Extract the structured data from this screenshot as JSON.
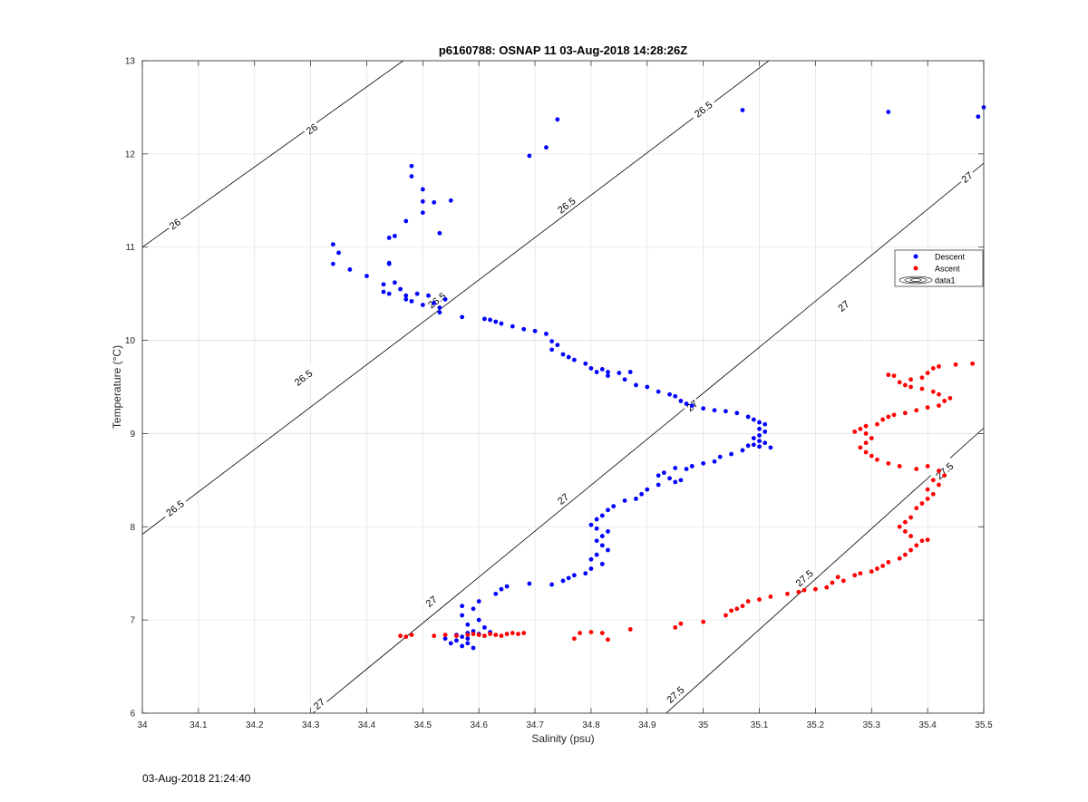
{
  "chart_data": {
    "type": "scatter",
    "title": "p6160788: OSNAP 11 03-Aug-2018 14:28:26Z",
    "xlabel": "Salinity (psu)",
    "ylabel": "Temperature (°C)",
    "xlim": [
      34,
      35.5
    ],
    "ylim": [
      6,
      13
    ],
    "xticks": [
      "34",
      "34.1",
      "34.2",
      "34.3",
      "34.4",
      "34.5",
      "34.6",
      "34.7",
      "34.8",
      "34.9",
      "35",
      "35.1",
      "35.2",
      "35.3",
      "35.4",
      "35.5"
    ],
    "yticks": [
      "6",
      "7",
      "8",
      "9",
      "10",
      "11",
      "12",
      "13"
    ],
    "grid": true,
    "legend_position": "right",
    "legend": [
      "Descent",
      "Ascent",
      "data1"
    ],
    "contours": [
      {
        "label": "26",
        "points": [
          [
            34.0,
            11.0
          ],
          [
            34.5,
            13.15
          ]
        ],
        "label_at": [
          [
            34.058,
            11.25
          ],
          [
            34.302,
            12.27
          ]
        ]
      },
      {
        "label": "26.5",
        "points": [
          [
            34.0,
            7.92
          ],
          [
            35.15,
            13.15
          ]
        ],
        "label_at": [
          [
            34.058,
            8.2
          ],
          [
            34.287,
            9.6
          ],
          [
            34.525,
            10.43
          ],
          [
            34.756,
            11.45
          ],
          [
            35.0,
            12.48
          ]
        ]
      },
      {
        "label": "27",
        "points": [
          [
            34.3,
            5.98
          ],
          [
            35.5,
            11.9
          ]
        ],
        "label_at": [
          [
            34.315,
            6.1
          ],
          [
            34.515,
            7.2
          ],
          [
            34.75,
            8.3
          ],
          [
            34.98,
            9.3
          ],
          [
            35.25,
            10.37
          ],
          [
            35.47,
            11.75
          ]
        ]
      },
      {
        "label": "27.5",
        "points": [
          [
            34.93,
            5.98
          ],
          [
            35.5,
            9.06
          ]
        ],
        "label_at": [
          [
            34.95,
            6.2
          ],
          [
            35.18,
            7.45
          ],
          [
            35.43,
            8.6
          ]
        ]
      }
    ],
    "series": [
      {
        "name": "Descent",
        "color": "#0000ff",
        "points": [
          [
            34.34,
            11.03
          ],
          [
            34.35,
            10.94
          ],
          [
            34.34,
            10.82
          ],
          [
            34.37,
            10.76
          ],
          [
            34.4,
            10.69
          ],
          [
            34.44,
            10.82
          ],
          [
            34.44,
            10.83
          ],
          [
            34.48,
            11.87
          ],
          [
            34.48,
            11.76
          ],
          [
            34.5,
            11.62
          ],
          [
            34.52,
            11.48
          ],
          [
            34.55,
            11.5
          ],
          [
            34.5,
            11.49
          ],
          [
            34.5,
            11.37
          ],
          [
            34.47,
            11.28
          ],
          [
            34.45,
            11.12
          ],
          [
            34.44,
            11.1
          ],
          [
            34.53,
            11.15
          ],
          [
            34.69,
            11.98
          ],
          [
            34.72,
            12.07
          ],
          [
            34.74,
            12.37
          ],
          [
            35.07,
            12.47
          ],
          [
            35.33,
            12.45
          ],
          [
            35.49,
            12.4
          ],
          [
            35.5,
            12.5
          ],
          [
            34.43,
            10.6
          ],
          [
            34.45,
            10.62
          ],
          [
            34.43,
            10.52
          ],
          [
            34.44,
            10.5
          ],
          [
            34.46,
            10.55
          ],
          [
            34.47,
            10.48
          ],
          [
            34.49,
            10.5
          ],
          [
            34.51,
            10.48
          ],
          [
            34.47,
            10.44
          ],
          [
            34.48,
            10.42
          ],
          [
            34.5,
            10.38
          ],
          [
            34.52,
            10.4
          ],
          [
            34.53,
            10.35
          ],
          [
            34.54,
            10.44
          ],
          [
            34.53,
            10.3
          ],
          [
            34.57,
            10.25
          ],
          [
            34.61,
            10.23
          ],
          [
            34.62,
            10.22
          ],
          [
            34.63,
            10.2
          ],
          [
            34.64,
            10.18
          ],
          [
            34.66,
            10.15
          ],
          [
            34.68,
            10.12
          ],
          [
            34.7,
            10.1
          ],
          [
            34.72,
            10.07
          ],
          [
            34.73,
            9.99
          ],
          [
            34.74,
            9.95
          ],
          [
            34.73,
            9.9
          ],
          [
            34.75,
            9.85
          ],
          [
            34.76,
            9.82
          ],
          [
            34.77,
            9.79
          ],
          [
            34.79,
            9.75
          ],
          [
            34.8,
            9.7
          ],
          [
            34.82,
            9.69
          ],
          [
            34.83,
            9.66
          ],
          [
            34.85,
            9.65
          ],
          [
            34.87,
            9.66
          ],
          [
            34.81,
            9.66
          ],
          [
            34.83,
            9.62
          ],
          [
            34.86,
            9.58
          ],
          [
            34.88,
            9.52
          ],
          [
            34.9,
            9.5
          ],
          [
            34.92,
            9.45
          ],
          [
            34.94,
            9.42
          ],
          [
            34.95,
            9.4
          ],
          [
            34.96,
            9.35
          ],
          [
            34.97,
            9.32
          ],
          [
            34.98,
            9.3
          ],
          [
            35.0,
            9.27
          ],
          [
            35.02,
            9.25
          ],
          [
            35.04,
            9.24
          ],
          [
            35.06,
            9.22
          ],
          [
            35.08,
            9.18
          ],
          [
            35.09,
            9.15
          ],
          [
            35.1,
            9.12
          ],
          [
            35.11,
            9.1
          ],
          [
            35.1,
            9.05
          ],
          [
            35.11,
            9.02
          ],
          [
            35.1,
            8.98
          ],
          [
            35.09,
            8.95
          ],
          [
            35.1,
            8.92
          ],
          [
            35.11,
            8.9
          ],
          [
            35.09,
            8.88
          ],
          [
            35.1,
            8.86
          ],
          [
            35.12,
            8.85
          ],
          [
            35.08,
            8.87
          ],
          [
            35.07,
            8.82
          ],
          [
            35.05,
            8.78
          ],
          [
            35.03,
            8.75
          ],
          [
            35.02,
            8.7
          ],
          [
            35.0,
            8.68
          ],
          [
            34.98,
            8.65
          ],
          [
            34.97,
            8.62
          ],
          [
            34.95,
            8.63
          ],
          [
            34.93,
            8.58
          ],
          [
            34.92,
            8.55
          ],
          [
            34.94,
            8.52
          ],
          [
            34.96,
            8.5
          ],
          [
            34.95,
            8.48
          ],
          [
            34.92,
            8.45
          ],
          [
            34.9,
            8.4
          ],
          [
            34.89,
            8.35
          ],
          [
            34.88,
            8.3
          ],
          [
            34.86,
            8.28
          ],
          [
            34.84,
            8.22
          ],
          [
            34.83,
            8.18
          ],
          [
            34.82,
            8.12
          ],
          [
            34.81,
            8.08
          ],
          [
            34.8,
            8.02
          ],
          [
            34.81,
            7.98
          ],
          [
            34.83,
            7.95
          ],
          [
            34.82,
            7.9
          ],
          [
            34.81,
            7.85
          ],
          [
            34.82,
            7.8
          ],
          [
            34.83,
            7.75
          ],
          [
            34.81,
            7.7
          ],
          [
            34.8,
            7.65
          ],
          [
            34.82,
            7.6
          ],
          [
            34.8,
            7.55
          ],
          [
            34.79,
            7.5
          ],
          [
            34.77,
            7.48
          ],
          [
            34.76,
            7.45
          ],
          [
            34.75,
            7.42
          ],
          [
            34.73,
            7.38
          ],
          [
            34.69,
            7.39
          ],
          [
            34.65,
            7.36
          ],
          [
            34.64,
            7.33
          ],
          [
            34.63,
            7.28
          ],
          [
            34.6,
            7.2
          ],
          [
            34.57,
            7.15
          ],
          [
            34.59,
            7.12
          ],
          [
            34.57,
            7.05
          ],
          [
            34.6,
            7.0
          ],
          [
            34.58,
            6.95
          ],
          [
            34.61,
            6.92
          ],
          [
            34.59,
            6.88
          ],
          [
            34.62,
            6.87
          ],
          [
            34.6,
            6.85
          ],
          [
            34.57,
            6.82
          ],
          [
            34.58,
            6.8
          ],
          [
            34.56,
            6.78
          ],
          [
            34.58,
            6.75
          ],
          [
            34.59,
            6.7
          ],
          [
            34.57,
            6.72
          ],
          [
            34.55,
            6.75
          ],
          [
            34.54,
            6.8
          ],
          [
            34.56,
            6.84
          ],
          [
            34.58,
            6.86
          ]
        ]
      },
      {
        "name": "Ascent",
        "color": "#ff0000",
        "points": [
          [
            34.46,
            6.83
          ],
          [
            34.47,
            6.82
          ],
          [
            34.48,
            6.84
          ],
          [
            34.52,
            6.83
          ],
          [
            34.54,
            6.84
          ],
          [
            34.56,
            6.83
          ],
          [
            34.58,
            6.84
          ],
          [
            34.59,
            6.85
          ],
          [
            34.6,
            6.84
          ],
          [
            34.61,
            6.83
          ],
          [
            34.62,
            6.85
          ],
          [
            34.63,
            6.84
          ],
          [
            34.64,
            6.83
          ],
          [
            34.65,
            6.85
          ],
          [
            34.66,
            6.86
          ],
          [
            34.67,
            6.85
          ],
          [
            34.68,
            6.86
          ],
          [
            34.77,
            6.8
          ],
          [
            34.78,
            6.86
          ],
          [
            34.8,
            6.87
          ],
          [
            34.82,
            6.86
          ],
          [
            34.83,
            6.79
          ],
          [
            34.87,
            6.9
          ],
          [
            34.95,
            6.92
          ],
          [
            34.96,
            6.96
          ],
          [
            35.0,
            6.98
          ],
          [
            35.04,
            7.05
          ],
          [
            35.05,
            7.1
          ],
          [
            35.06,
            7.12
          ],
          [
            35.07,
            7.15
          ],
          [
            35.08,
            7.2
          ],
          [
            35.1,
            7.22
          ],
          [
            35.12,
            7.25
          ],
          [
            35.15,
            7.28
          ],
          [
            35.17,
            7.3
          ],
          [
            35.18,
            7.32
          ],
          [
            35.2,
            7.33
          ],
          [
            35.22,
            7.35
          ],
          [
            35.23,
            7.4
          ],
          [
            35.25,
            7.42
          ],
          [
            35.24,
            7.46
          ],
          [
            35.27,
            7.48
          ],
          [
            35.28,
            7.5
          ],
          [
            35.3,
            7.52
          ],
          [
            35.31,
            7.55
          ],
          [
            35.32,
            7.58
          ],
          [
            35.33,
            7.62
          ],
          [
            35.35,
            7.66
          ],
          [
            35.36,
            7.7
          ],
          [
            35.37,
            7.75
          ],
          [
            35.38,
            7.8
          ],
          [
            35.39,
            7.85
          ],
          [
            35.4,
            7.86
          ],
          [
            35.37,
            7.9
          ],
          [
            35.36,
            7.95
          ],
          [
            35.35,
            8.0
          ],
          [
            35.36,
            8.05
          ],
          [
            35.37,
            8.1
          ],
          [
            35.38,
            8.2
          ],
          [
            35.39,
            8.25
          ],
          [
            35.4,
            8.3
          ],
          [
            35.41,
            8.35
          ],
          [
            35.4,
            8.4
          ],
          [
            35.42,
            8.45
          ],
          [
            35.41,
            8.5
          ],
          [
            35.43,
            8.55
          ],
          [
            35.42,
            8.6
          ],
          [
            35.4,
            8.65
          ],
          [
            35.38,
            8.62
          ],
          [
            35.35,
            8.65
          ],
          [
            35.33,
            8.68
          ],
          [
            35.31,
            8.72
          ],
          [
            35.3,
            8.76
          ],
          [
            35.29,
            8.8
          ],
          [
            35.28,
            8.85
          ],
          [
            35.29,
            8.9
          ],
          [
            35.3,
            8.95
          ],
          [
            35.29,
            9.0
          ],
          [
            35.27,
            9.02
          ],
          [
            35.28,
            9.05
          ],
          [
            35.29,
            9.08
          ],
          [
            35.31,
            9.1
          ],
          [
            35.32,
            9.15
          ],
          [
            35.33,
            9.18
          ],
          [
            35.34,
            9.2
          ],
          [
            35.36,
            9.22
          ],
          [
            35.38,
            9.25
          ],
          [
            35.4,
            9.28
          ],
          [
            35.42,
            9.3
          ],
          [
            35.43,
            9.35
          ],
          [
            35.44,
            9.38
          ],
          [
            35.42,
            9.42
          ],
          [
            35.41,
            9.45
          ],
          [
            35.39,
            9.48
          ],
          [
            35.37,
            9.5
          ],
          [
            35.36,
            9.52
          ],
          [
            35.35,
            9.55
          ],
          [
            35.37,
            9.58
          ],
          [
            35.39,
            9.6
          ],
          [
            35.34,
            9.62
          ],
          [
            35.33,
            9.63
          ],
          [
            35.4,
            9.65
          ],
          [
            35.41,
            9.7
          ],
          [
            35.42,
            9.72
          ],
          [
            35.45,
            9.74
          ],
          [
            35.48,
            9.75
          ]
        ]
      }
    ]
  },
  "footer": {
    "timestamp": "03-Aug-2018 21:24:40"
  }
}
